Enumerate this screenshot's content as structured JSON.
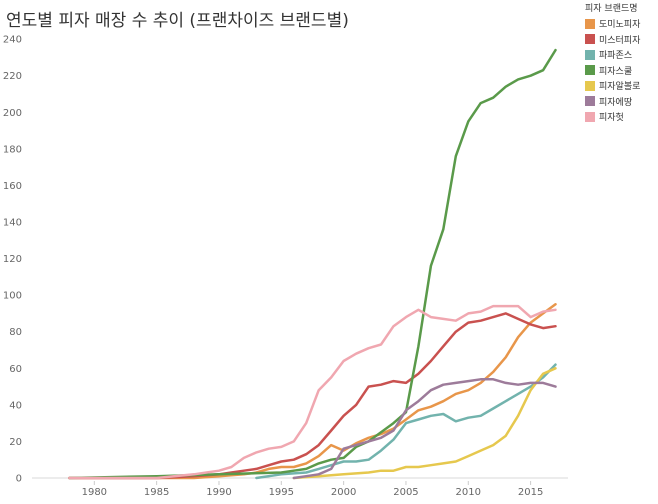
{
  "chart_data": {
    "type": "line",
    "title": "연도별 피자 매장 수 추이 (프랜차이즈 브랜드별)",
    "xlabel": "",
    "ylabel": "",
    "xlim": [
      1975,
      2018
    ],
    "ylim": [
      0,
      245
    ],
    "x_ticks": [
      1980,
      1985,
      1990,
      1995,
      2000,
      2005,
      2010,
      2015
    ],
    "y_ticks": [
      0,
      20,
      40,
      60,
      80,
      100,
      120,
      140,
      160,
      180,
      200,
      220,
      240
    ],
    "legend_title": "피자 브랜드명",
    "legend_position": "top-right",
    "grid": false,
    "series": [
      {
        "name": "도미노피자",
        "color": "#e8964a",
        "x": [
          1978,
          1983,
          1988,
          1990,
          1992,
          1993,
          1994,
          1995,
          1996,
          1997,
          1998,
          1999,
          2000,
          2001,
          2002,
          2003,
          2004,
          2005,
          2006,
          2007,
          2008,
          2009,
          2010,
          2011,
          2012,
          2013,
          2014,
          2015,
          2016,
          2017
        ],
        "y": [
          0,
          0,
          0,
          1,
          2,
          3,
          5,
          6,
          6,
          8,
          12,
          18,
          15,
          19,
          22,
          24,
          27,
          32,
          37,
          39,
          42,
          46,
          48,
          52,
          58,
          66,
          77,
          85,
          90,
          95
        ]
      },
      {
        "name": "미스터피자",
        "color": "#c9514f",
        "x": [
          1978,
          1985,
          1988,
          1990,
          1991,
          1992,
          1993,
          1994,
          1995,
          1996,
          1997,
          1998,
          1999,
          2000,
          2001,
          2002,
          2003,
          2004,
          2005,
          2006,
          2007,
          2008,
          2009,
          2010,
          2011,
          2012,
          2013,
          2014,
          2015,
          2016,
          2017
        ],
        "y": [
          0,
          0,
          1,
          2,
          3,
          4,
          5,
          7,
          9,
          10,
          13,
          18,
          26,
          34,
          40,
          50,
          51,
          53,
          52,
          57,
          64,
          72,
          80,
          85,
          86,
          88,
          90,
          87,
          84,
          82,
          83
        ]
      },
      {
        "name": "파파존스",
        "color": "#72b3ad",
        "x": [
          1993,
          1995,
          1997,
          1998,
          1999,
          2000,
          2001,
          2002,
          2003,
          2004,
          2005,
          2006,
          2007,
          2008,
          2009,
          2010,
          2011,
          2012,
          2013,
          2014,
          2015,
          2016,
          2017
        ],
        "y": [
          0,
          2,
          3,
          5,
          7,
          9,
          9,
          10,
          15,
          21,
          30,
          32,
          34,
          35,
          31,
          33,
          34,
          38,
          42,
          46,
          50,
          55,
          62
        ]
      },
      {
        "name": "피자스쿨",
        "color": "#5a9a4a",
        "x": [
          1978,
          1985,
          1990,
          1995,
          1996,
          1997,
          1998,
          1999,
          2000,
          2001,
          2002,
          2003,
          2004,
          2005,
          2006,
          2007,
          2008,
          2009,
          2010,
          2011,
          2012,
          2013,
          2014,
          2015,
          2016,
          2017
        ],
        "y": [
          0,
          1,
          2,
          3,
          4,
          5,
          8,
          10,
          11,
          17,
          20,
          25,
          30,
          36,
          72,
          116,
          136,
          176,
          195,
          205,
          208,
          214,
          218,
          220,
          223,
          234
        ]
      },
      {
        "name": "피자알볼로",
        "color": "#e6c84e",
        "x": [
          1996,
          1998,
          2000,
          2002,
          2003,
          2004,
          2005,
          2006,
          2007,
          2008,
          2009,
          2010,
          2011,
          2012,
          2013,
          2014,
          2015,
          2016,
          2017
        ],
        "y": [
          0,
          1,
          2,
          3,
          4,
          4,
          6,
          6,
          7,
          8,
          9,
          12,
          15,
          18,
          23,
          34,
          48,
          57,
          60
        ]
      },
      {
        "name": "피자에땅",
        "color": "#9d7b9a",
        "x": [
          1996,
          1997,
          1998,
          1999,
          2000,
          2001,
          2002,
          2003,
          2004,
          2005,
          2006,
          2007,
          2008,
          2009,
          2010,
          2011,
          2012,
          2013,
          2014,
          2015,
          2016,
          2017
        ],
        "y": [
          0,
          1,
          2,
          5,
          16,
          18,
          20,
          22,
          26,
          37,
          42,
          48,
          51,
          52,
          53,
          54,
          54,
          52,
          51,
          52,
          52,
          50
        ]
      },
      {
        "name": "피자헛",
        "color": "#f0a7b0",
        "x": [
          1978,
          1985,
          1988,
          1989,
          1990,
          1991,
          1992,
          1993,
          1994,
          1995,
          1996,
          1997,
          1998,
          1999,
          2000,
          2001,
          2002,
          2003,
          2004,
          2005,
          2006,
          2007,
          2008,
          2009,
          2010,
          2011,
          2012,
          2013,
          2014,
          2015,
          2016,
          2017
        ],
        "y": [
          0,
          0,
          2,
          3,
          4,
          6,
          11,
          14,
          16,
          17,
          20,
          30,
          48,
          55,
          64,
          68,
          71,
          73,
          83,
          88,
          92,
          88,
          87,
          86,
          90,
          91,
          94,
          94,
          94,
          88,
          91,
          92
        ]
      }
    ]
  }
}
